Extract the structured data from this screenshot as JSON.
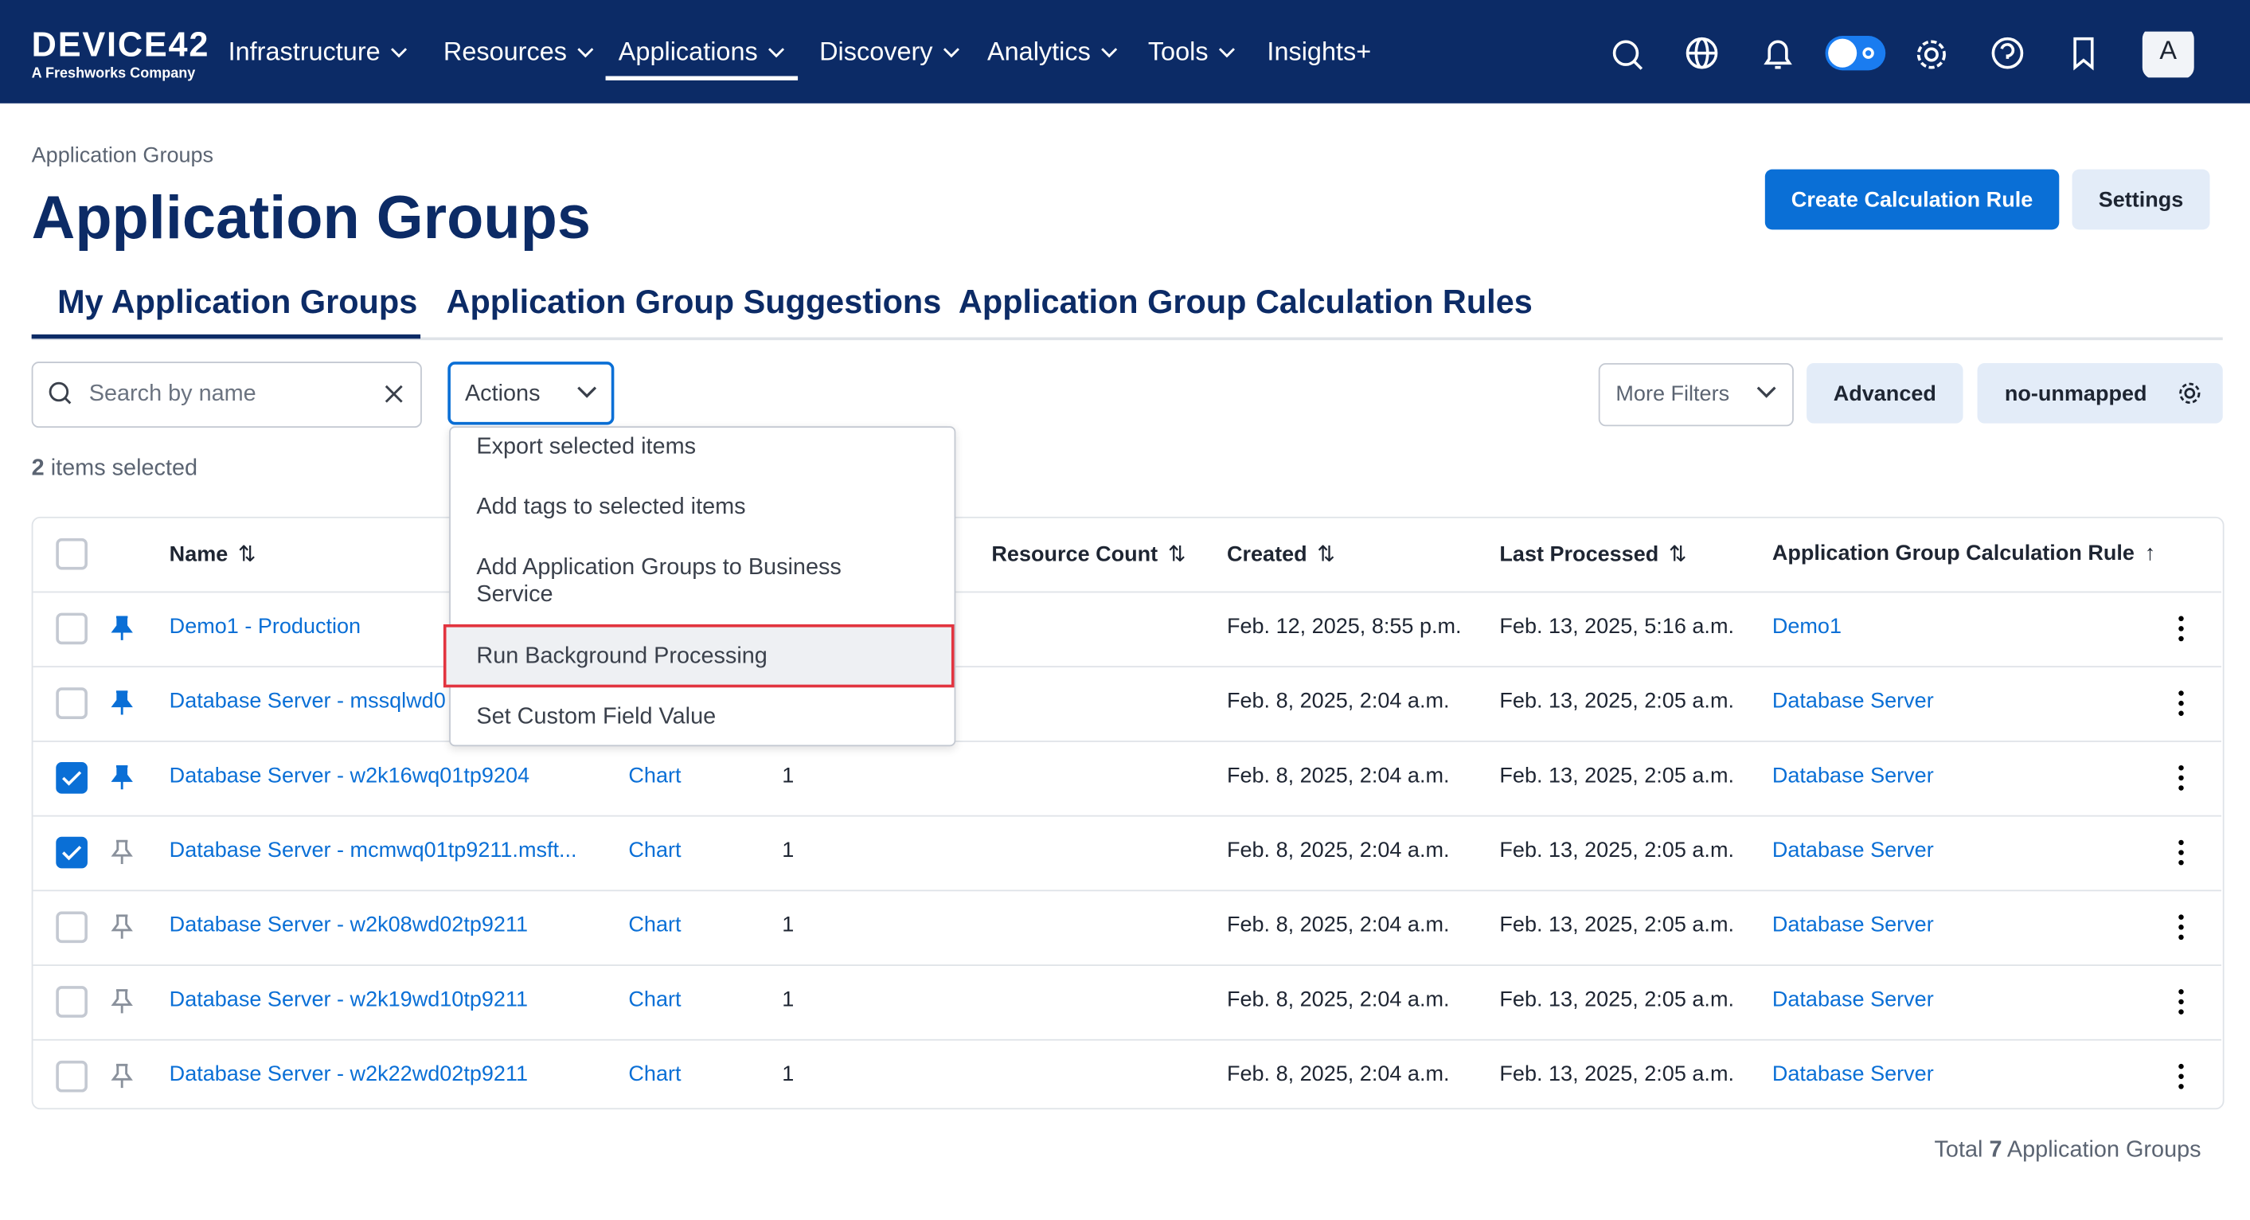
{
  "nav": {
    "logo": "DEVICE42",
    "logo_sub": "A Freshworks Company",
    "menu": [
      "Infrastructure",
      "Resources",
      "Applications",
      "Discovery",
      "Analytics",
      "Tools",
      "Insights+"
    ],
    "active": 2,
    "avatar": "A"
  },
  "header": {
    "breadcrumb": "Application Groups",
    "title": "Application Groups",
    "buttons": [
      "Create Calculation Rule",
      "Settings"
    ]
  },
  "tabs": {
    "items": [
      "My Application Groups",
      "Application Group Suggestions",
      "Application Group Calculation Rules"
    ],
    "active": 0
  },
  "toolbar": {
    "search_placeholder": "Search by name",
    "actions": "Actions",
    "more_filters": "More Filters",
    "advanced": "Advanced",
    "preset": "no-unmapped"
  },
  "selection": {
    "count": "2",
    "text": " items selected"
  },
  "dropdown": {
    "items": [
      "Export selected items",
      "Add tags to selected items",
      "Add Application Groups to Business Service",
      "Run Background Processing",
      "Set Custom Field Value"
    ],
    "highlighted": 3
  },
  "table": {
    "columns": {
      "name": "Name",
      "resource_count": "Resource Count",
      "created": "Created",
      "last_processed": "Last Processed",
      "rule": "Application Group Calculation Rule"
    },
    "rows": [
      {
        "checked": false,
        "pinned": true,
        "name": "Demo1 - Production",
        "created": "Feb. 12, 2025, 8:55 p.m.",
        "last_processed": "Feb. 13, 2025, 5:16 a.m.",
        "rule": "Demo1"
      },
      {
        "checked": false,
        "pinned": true,
        "name": "Database Server - mssqlwd0",
        "created": "Feb. 8, 2025, 2:04 a.m.",
        "last_processed": "Feb. 13, 2025, 2:05 a.m.",
        "rule": "Database Server"
      },
      {
        "checked": true,
        "pinned": true,
        "name": "Database Server - w2k16wq01tp9204",
        "chart": "Chart",
        "count": "1",
        "created": "Feb. 8, 2025, 2:04 a.m.",
        "last_processed": "Feb. 13, 2025, 2:05 a.m.",
        "rule": "Database Server"
      },
      {
        "checked": true,
        "pinned": false,
        "name": "Database Server - mcmwq01tp9211.msft...",
        "chart": "Chart",
        "count": "1",
        "created": "Feb. 8, 2025, 2:04 a.m.",
        "last_processed": "Feb. 13, 2025, 2:05 a.m.",
        "rule": "Database Server"
      },
      {
        "checked": false,
        "pinned": false,
        "name": "Database Server - w2k08wd02tp9211",
        "chart": "Chart",
        "count": "1",
        "created": "Feb. 8, 2025, 2:04 a.m.",
        "last_processed": "Feb. 13, 2025, 2:05 a.m.",
        "rule": "Database Server"
      },
      {
        "checked": false,
        "pinned": false,
        "name": "Database Server - w2k19wd10tp9211",
        "chart": "Chart",
        "count": "1",
        "created": "Feb. 8, 2025, 2:04 a.m.",
        "last_processed": "Feb. 13, 2025, 2:05 a.m.",
        "rule": "Database Server"
      },
      {
        "checked": false,
        "pinned": false,
        "name": "Database Server - w2k22wd02tp9211",
        "chart": "Chart",
        "count": "1",
        "created": "Feb. 8, 2025, 2:04 a.m.",
        "last_processed": "Feb. 13, 2025, 2:05 a.m.",
        "rule": "Database Server"
      }
    ]
  },
  "footer": {
    "prefix": "Total ",
    "count": "7",
    "suffix": " Application Groups"
  }
}
